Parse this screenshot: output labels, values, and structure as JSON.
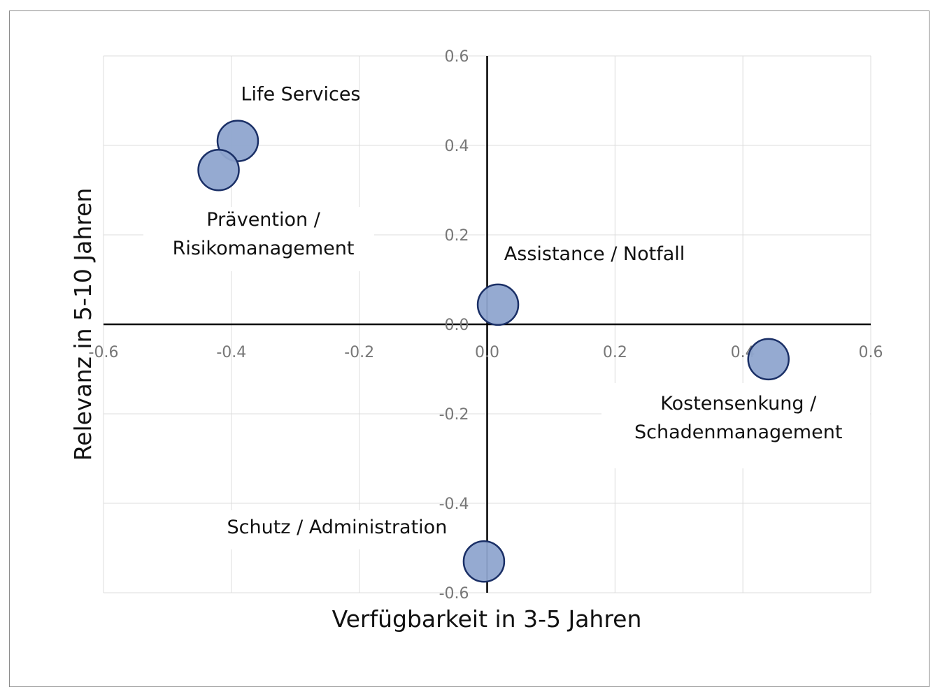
{
  "chart_data": {
    "type": "scatter",
    "title": "",
    "xlabel": "Verfügbarkeit in 3-5 Jahren",
    "ylabel": "Relevanz in 5-10 Jahren",
    "xlim": [
      -0.6,
      0.6
    ],
    "ylim": [
      -0.6,
      0.6
    ],
    "x_ticks": [
      "-0.6",
      "-0.4",
      "-0.2",
      "0.0",
      "0.2",
      "0.4",
      "0.6"
    ],
    "y_ticks": [
      "0.6",
      "0.4",
      "0.2",
      "0.0",
      "-0.2",
      "-0.4",
      "-0.6"
    ],
    "grid": true,
    "marker_color": "#8fa5cf",
    "marker_edge_color": "#1a2f66",
    "points": [
      {
        "label": "Life Services",
        "x": -0.39,
        "y": 0.41
      },
      {
        "label": "Prävention / Risikomanagement",
        "x": -0.42,
        "y": 0.345
      },
      {
        "label": "Assistance / Notfall",
        "x": 0.017,
        "y": 0.044
      },
      {
        "label": "Kostensenkung / Schadenmanagement",
        "x": 0.44,
        "y": -0.078
      },
      {
        "label": "Schutz / Administration",
        "x": -0.005,
        "y": -0.53
      }
    ]
  }
}
